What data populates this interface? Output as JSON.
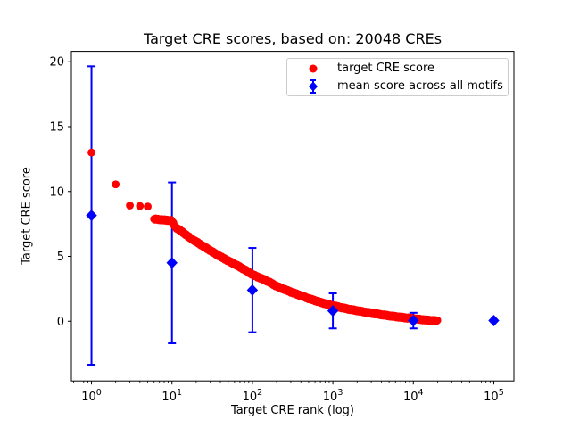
{
  "title": "Target CRE scores, based on: 20048 CREs",
  "xlabel": "Target CRE rank (log)",
  "ylabel": "Target CRE score",
  "legend": {
    "position": "upper right",
    "items": [
      {
        "label": "target CRE score",
        "marker": "circle",
        "color": "#ff0000"
      },
      {
        "label": "mean score across all motifs",
        "marker": "diamond-errorbar",
        "color": "#0000ff"
      }
    ]
  },
  "chart_data": {
    "type": "scatter",
    "title": "Target CRE scores, based on: 20048 CREs",
    "xlabel": "Target CRE rank (log)",
    "ylabel": "Target CRE score",
    "x_scale": "log10",
    "xlim_log10": [
      -0.25,
      5.25
    ],
    "ylim": [
      -4.6,
      20.8
    ],
    "grid": false,
    "x_major_ticks": [
      1,
      10,
      100,
      1000,
      10000,
      100000
    ],
    "x_major_tick_labels": [
      {
        "base": "10",
        "exp": "0"
      },
      {
        "base": "10",
        "exp": "1"
      },
      {
        "base": "10",
        "exp": "2"
      },
      {
        "base": "10",
        "exp": "3"
      },
      {
        "base": "10",
        "exp": "4"
      },
      {
        "base": "10",
        "exp": "5"
      }
    ],
    "y_ticks": [
      0,
      5,
      10,
      15,
      20
    ],
    "series": [
      {
        "name": "target CRE score",
        "marker": "circle",
        "color": "#ff0000",
        "n_points": 20048,
        "head_points_rank_score": [
          [
            1,
            13.0
          ],
          [
            2,
            10.55
          ],
          [
            3,
            8.92
          ],
          [
            4,
            8.88
          ],
          [
            5,
            8.84
          ]
        ],
        "band_log10rank_score": [
          [
            0.778,
            7.88
          ],
          [
            0.845,
            7.84
          ],
          [
            0.903,
            7.8
          ],
          [
            0.954,
            7.78
          ],
          [
            1.0,
            7.75
          ],
          [
            1.041,
            7.25
          ],
          [
            1.114,
            6.95
          ],
          [
            1.23,
            6.4
          ],
          [
            1.398,
            5.75
          ],
          [
            1.568,
            5.1
          ],
          [
            1.7,
            4.65
          ],
          [
            1.81,
            4.3
          ],
          [
            1.91,
            3.95
          ],
          [
            2.0,
            3.6
          ],
          [
            2.2,
            3.05
          ],
          [
            2.3,
            2.7
          ],
          [
            2.48,
            2.25
          ],
          [
            2.7,
            1.75
          ],
          [
            2.85,
            1.45
          ],
          [
            3.0,
            1.2
          ],
          [
            3.18,
            0.95
          ],
          [
            3.3,
            0.82
          ],
          [
            3.48,
            0.62
          ],
          [
            3.7,
            0.42
          ],
          [
            3.85,
            0.3
          ],
          [
            4.0,
            0.2
          ],
          [
            4.15,
            0.1
          ],
          [
            4.302,
            0.02
          ]
        ]
      },
      {
        "name": "mean score across all motifs",
        "marker": "diamond",
        "color": "#0000ff",
        "points": [
          {
            "rank": 1,
            "mean": 8.15,
            "err": 11.5
          },
          {
            "rank": 10,
            "mean": 4.5,
            "err": 6.2
          },
          {
            "rank": 100,
            "mean": 2.4,
            "err": 3.25
          },
          {
            "rank": 1000,
            "mean": 0.8,
            "err": 1.35
          },
          {
            "rank": 10000,
            "mean": 0.05,
            "err": 0.6
          },
          {
            "rank": 100000,
            "mean": 0.05,
            "err": 0.05
          }
        ]
      }
    ]
  }
}
